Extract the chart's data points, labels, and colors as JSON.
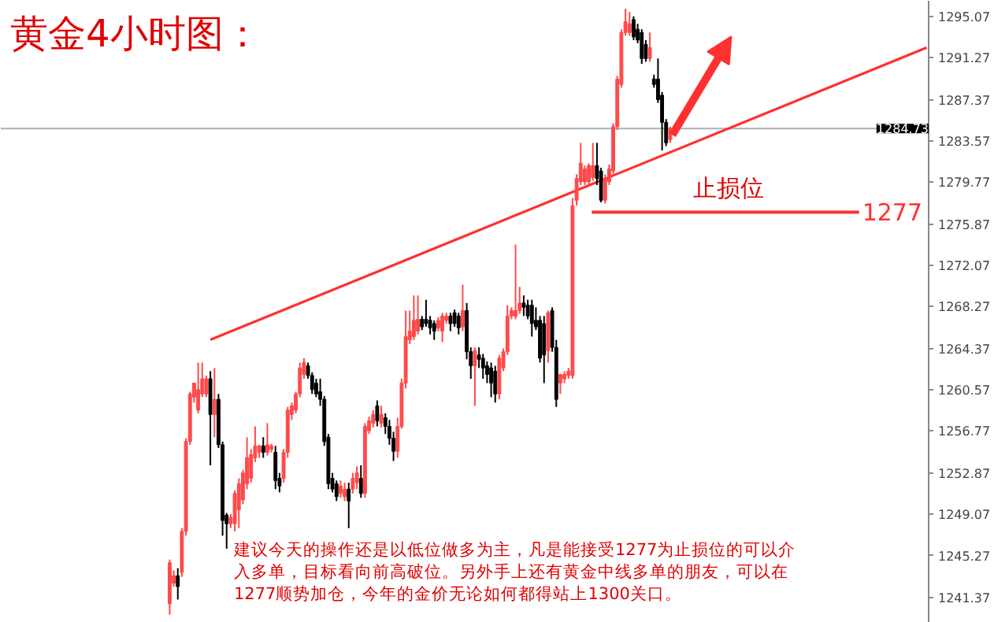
{
  "chart_data": {
    "type": "candlestick",
    "title": "黄金4小时图：",
    "categories": [
      null,
      null,
      null,
      null,
      null,
      null,
      null,
      null,
      null,
      null,
      null,
      null,
      null,
      null,
      null,
      null,
      null,
      null,
      null,
      null,
      null,
      null,
      null,
      null,
      null,
      null,
      null,
      null,
      null,
      null,
      null,
      null,
      null,
      null,
      null,
      null,
      null,
      null,
      null,
      null,
      null,
      null,
      null,
      null,
      null,
      null,
      null,
      null,
      null,
      null,
      null,
      null,
      null,
      null,
      null,
      null,
      null,
      null,
      null,
      null,
      null,
      null,
      null,
      null,
      null,
      null,
      null,
      null,
      null,
      null,
      null,
      null,
      null,
      null,
      null,
      null,
      null,
      null,
      null,
      null,
      null,
      null,
      null,
      null,
      null,
      null,
      null,
      null,
      null,
      null,
      null,
      null,
      null,
      null,
      null,
      null,
      null,
      null,
      null,
      null,
      null,
      null,
      null,
      null,
      null,
      null,
      null,
      null,
      null,
      null,
      null,
      null,
      null,
      null,
      null,
      null,
      null,
      null,
      null,
      null,
      null,
      null,
      null,
      null,
      null,
      null,
      null,
      null,
      null,
      null,
      null,
      null,
      null,
      null,
      null,
      null,
      null,
      null,
      null,
      null,
      null,
      null,
      null,
      null,
      null,
      null,
      null,
      null,
      null,
      null,
      null,
      null,
      null,
      null,
      null,
      null,
      null,
      null,
      null,
      null,
      null,
      null,
      null,
      null,
      null,
      null,
      null,
      null,
      null,
      null,
      null,
      null,
      null,
      null,
      null,
      null,
      null,
      null,
      null,
      null,
      null,
      null,
      null,
      null,
      null,
      null,
      null,
      null,
      null,
      null,
      null,
      null,
      null,
      null,
      null,
      null,
      null,
      null,
      null,
      null,
      null,
      null,
      null,
      null,
      null,
      null,
      null,
      null,
      null,
      null,
      null,
      null,
      null,
      null,
      null,
      null,
      null,
      null,
      null,
      null,
      null,
      null,
      null,
      null,
      null,
      null,
      null,
      null
    ],
    "ohlc": [
      null,
      null,
      null,
      null,
      null,
      null,
      null,
      null,
      null,
      null,
      null,
      null,
      null,
      null,
      null,
      null,
      null,
      null,
      null,
      null,
      null,
      null,
      null,
      null,
      null,
      null,
      null,
      null,
      null,
      null,
      null,
      null,
      null,
      null,
      null,
      null,
      null,
      null,
      null,
      null,
      null,
      [
        1240.8,
        1244.9,
        1239.8,
        1244.6
      ],
      [
        1242.7,
        1243.9,
        1242.4,
        1243.4
      ],
      [
        1243.4,
        1244.1,
        1241.2,
        1242.4
      ],
      [
        1243.7,
        1247.8,
        1243.3,
        1247.5
      ],
      [
        1247.5,
        1256.1,
        1247.1,
        1255.8
      ],
      [
        1255.8,
        1260.4,
        1255.5,
        1260.2
      ],
      [
        1259.9,
        1261.2,
        1259.4,
        1261.2
      ],
      [
        1258.7,
        1263.1,
        1258.4,
        1260.6
      ],
      [
        1260.2,
        1263.1,
        1259.9,
        1261.6
      ],
      [
        1260.2,
        1261.9,
        1259.9,
        1261.6
      ],
      [
        1261.6,
        1262.3,
        1253.6,
        1258.3
      ],
      [
        1258.3,
        1262.6,
        1256.2,
        1259.7
      ],
      [
        1259.7,
        1260.2,
        1255.2,
        1255.5
      ],
      [
        1255.5,
        1255.8,
        1247.1,
        1248.5
      ],
      [
        1249.0,
        1249.2,
        1245.9,
        1248.2
      ],
      [
        1248.2,
        1249.1,
        1247.8,
        1248.8
      ],
      [
        1248.2,
        1251.3,
        1247.5,
        1251.0
      ],
      [
        1249.5,
        1252.4,
        1247.8,
        1251.9
      ],
      [
        1250.4,
        1253.2,
        1250.0,
        1252.9
      ],
      [
        1251.9,
        1256.2,
        1251.4,
        1254.3
      ],
      [
        1252.4,
        1255.1,
        1252.0,
        1254.6
      ],
      [
        1254.3,
        1257.2,
        1253.9,
        1255.4
      ],
      [
        1254.8,
        1255.5,
        1254.3,
        1255.4
      ],
      [
        1255.4,
        1256.2,
        1254.3,
        1254.8
      ],
      [
        1254.8,
        1257.5,
        1254.5,
        1255.5
      ],
      [
        1255.1,
        1255.6,
        1254.8,
        1255.4
      ],
      [
        1254.8,
        1255.4,
        1251.4,
        1252.2
      ],
      [
        1252.4,
        1252.9,
        1251.1,
        1251.7
      ],
      [
        1252.4,
        1255.1,
        1252.0,
        1254.8
      ],
      [
        1254.8,
        1259.0,
        1254.3,
        1258.7
      ],
      [
        1258.3,
        1259.4,
        1257.8,
        1259.1
      ],
      [
        1258.7,
        1260.4,
        1258.4,
        1260.2
      ],
      [
        1260.2,
        1263.1,
        1259.9,
        1262.6
      ],
      [
        1262.0,
        1263.5,
        1261.6,
        1263.1
      ],
      [
        1262.8,
        1263.1,
        1261.6,
        1261.9
      ],
      [
        1261.9,
        1262.2,
        1260.2,
        1260.6
      ],
      [
        1261.2,
        1261.6,
        1259.9,
        1260.2
      ],
      [
        1260.4,
        1261.6,
        1259.1,
        1259.7
      ],
      [
        1259.7,
        1260.0,
        1255.4,
        1255.8
      ],
      [
        1256.2,
        1256.5,
        1251.4,
        1251.9
      ],
      [
        1252.4,
        1252.9,
        1251.1,
        1251.4
      ],
      [
        1251.9,
        1252.2,
        1250.3,
        1250.7
      ],
      [
        1251.0,
        1252.2,
        1250.6,
        1251.7
      ],
      [
        1250.7,
        1252.0,
        1250.3,
        1251.4
      ],
      [
        1251.4,
        1252.0,
        1247.8,
        1250.3
      ],
      [
        1251.4,
        1252.9,
        1251.0,
        1252.4
      ],
      [
        1252.0,
        1253.5,
        1251.4,
        1252.9
      ],
      [
        1252.4,
        1253.6,
        1250.6,
        1251.0
      ],
      [
        1251.0,
        1257.5,
        1250.6,
        1257.2
      ],
      [
        1256.8,
        1258.1,
        1256.5,
        1257.7
      ],
      [
        1257.5,
        1258.7,
        1257.1,
        1258.3
      ],
      [
        1259.1,
        1259.6,
        1257.2,
        1257.7
      ],
      [
        1257.5,
        1259.1,
        1257.1,
        1258.3
      ],
      [
        1258.0,
        1258.4,
        1256.5,
        1257.2
      ],
      [
        1257.2,
        1257.8,
        1255.5,
        1256.1
      ],
      [
        1256.1,
        1256.7,
        1254.0,
        1254.9
      ],
      [
        1254.9,
        1258.0,
        1254.3,
        1257.2
      ],
      [
        1257.2,
        1261.6,
        1257.0,
        1261.2
      ],
      [
        1261.2,
        1267.9,
        1260.7,
        1265.5
      ],
      [
        1265.2,
        1267.9,
        1264.8,
        1266.0
      ],
      [
        1265.5,
        1269.3,
        1265.2,
        1267.0
      ],
      [
        1266.0,
        1269.3,
        1265.7,
        1267.1
      ],
      [
        1267.1,
        1267.4,
        1266.1,
        1266.4
      ],
      [
        1267.1,
        1268.9,
        1266.4,
        1266.7
      ],
      [
        1267.0,
        1267.4,
        1265.7,
        1266.3
      ],
      [
        1266.7,
        1267.0,
        1265.2,
        1266.0
      ],
      [
        1266.3,
        1267.3,
        1266.0,
        1267.0
      ],
      [
        1266.0,
        1267.7,
        1265.0,
        1267.4
      ],
      [
        1267.0,
        1267.7,
        1266.7,
        1267.4
      ],
      [
        1267.4,
        1267.7,
        1266.0,
        1266.7
      ],
      [
        1267.7,
        1268.0,
        1266.4,
        1266.7
      ],
      [
        1267.4,
        1267.7,
        1265.7,
        1266.3
      ],
      [
        1266.4,
        1270.3,
        1266.0,
        1267.9
      ],
      [
        1267.9,
        1268.6,
        1263.4,
        1264.1
      ],
      [
        1264.1,
        1264.5,
        1261.6,
        1262.8
      ],
      [
        1262.8,
        1264.5,
        1259.1,
        1264.2
      ],
      [
        1263.8,
        1264.5,
        1262.6,
        1263.4
      ],
      [
        1263.5,
        1263.9,
        1261.6,
        1262.6
      ],
      [
        1262.8,
        1263.2,
        1261.2,
        1262.0
      ],
      [
        1262.6,
        1263.1,
        1259.9,
        1261.2
      ],
      [
        1262.3,
        1262.8,
        1259.4,
        1260.2
      ],
      [
        1260.2,
        1263.8,
        1259.7,
        1263.5
      ],
      [
        1262.6,
        1264.4,
        1262.3,
        1264.1
      ],
      [
        1264.1,
        1268.4,
        1263.8,
        1267.4
      ],
      [
        1267.4,
        1268.2,
        1267.1,
        1267.9
      ],
      [
        1267.4,
        1274.0,
        1267.1,
        1267.9
      ],
      [
        1267.9,
        1270.1,
        1267.6,
        1268.6
      ],
      [
        1268.6,
        1269.3,
        1267.4,
        1268.2
      ],
      [
        1268.4,
        1268.9,
        1267.1,
        1267.4
      ],
      [
        1268.4,
        1268.9,
        1265.5,
        1266.7
      ],
      [
        1267.0,
        1268.2,
        1266.1,
        1266.4
      ],
      [
        1267.0,
        1267.4,
        1263.1,
        1263.5
      ],
      [
        1266.7,
        1267.4,
        1261.2,
        1263.8
      ],
      [
        1264.2,
        1267.9,
        1263.1,
        1267.7
      ],
      [
        1267.9,
        1268.2,
        1264.1,
        1264.5
      ],
      [
        1264.5,
        1265.2,
        1259.0,
        1259.7
      ],
      [
        1261.2,
        1262.0,
        1260.2,
        1262.0
      ],
      [
        1261.6,
        1262.3,
        1261.2,
        1262.0
      ],
      [
        1261.9,
        1262.6,
        1261.6,
        1262.3
      ],
      [
        1261.9,
        1278.3,
        1261.6,
        1277.6
      ],
      [
        1278.1,
        1280.5,
        1277.6,
        1280.1
      ],
      [
        1279.8,
        1283.4,
        1279.5,
        1281.5
      ],
      [
        1279.8,
        1281.3,
        1279.5,
        1281.0
      ],
      [
        1279.8,
        1281.5,
        1279.5,
        1281.3
      ],
      [
        1280.2,
        1283.4,
        1279.9,
        1281.3
      ],
      [
        1281.3,
        1283.4,
        1279.5,
        1280.1
      ],
      [
        1280.8,
        1281.1,
        1277.9,
        1278.1
      ],
      [
        1278.1,
        1280.5,
        1277.8,
        1280.1
      ],
      [
        1279.8,
        1281.4,
        1279.5,
        1281.0
      ],
      [
        1280.8,
        1285.2,
        1280.5,
        1284.9
      ],
      [
        1284.9,
        1289.6,
        1284.6,
        1289.3
      ],
      [
        1288.8,
        1293.9,
        1288.5,
        1293.6
      ],
      [
        1293.6,
        1295.8,
        1293.3,
        1294.6
      ],
      [
        1293.6,
        1295.5,
        1293.3,
        1294.4
      ],
      [
        1294.8,
        1295.1,
        1292.9,
        1293.2
      ],
      [
        1293.9,
        1294.4,
        1292.6,
        1292.9
      ],
      [
        1293.6,
        1293.9,
        1290.7,
        1291.2
      ],
      [
        1292.5,
        1292.9,
        1290.9,
        1291.2
      ],
      [
        1291.2,
        1293.6,
        1290.9,
        1292.2
      ],
      [
        1289.3,
        1289.7,
        1288.5,
        1288.8
      ],
      [
        1289.3,
        1291.2,
        1287.1,
        1287.4
      ],
      [
        1287.8,
        1288.1,
        1282.7,
        1285.3
      ],
      [
        1285.3,
        1285.6,
        1283.1,
        1283.4
      ],
      [
        1283.7,
        1284.9,
        1283.4,
        1284.73
      ],
      null,
      null,
      null,
      null,
      null,
      null,
      null,
      null,
      null,
      null,
      null,
      null,
      null,
      null,
      null,
      null,
      null,
      null,
      null,
      null,
      null,
      null,
      null,
      null,
      null,
      null,
      null,
      null,
      null,
      null,
      null,
      null,
      null,
      null,
      null,
      null,
      null,
      null,
      null,
      null,
      null,
      null,
      null,
      null,
      null,
      null,
      null,
      null,
      null,
      null,
      null,
      null,
      null,
      null,
      null,
      null,
      null,
      null,
      null,
      null,
      null,
      null,
      null
    ],
    "series": [
      {
        "type": "line",
        "color": "#ff3030",
        "values": [
          null,
          null,
          null,
          null,
          null,
          null,
          null,
          null,
          null,
          null,
          null,
          null,
          null,
          null,
          null,
          null,
          null,
          null,
          null,
          null,
          null,
          null,
          null,
          null,
          null,
          null,
          null,
          null,
          null,
          null,
          null,
          null,
          null,
          null,
          null,
          null,
          null,
          null,
          null,
          null,
          null,
          null,
          null,
          null,
          null,
          null,
          null,
          null,
          null,
          null,
          null,
          1265.2,
          null,
          null,
          null,
          null,
          null,
          null,
          null,
          null,
          null,
          null,
          null,
          null,
          null,
          null,
          null,
          null,
          null,
          null,
          null,
          null,
          null,
          null,
          null,
          null,
          null,
          null,
          null,
          null,
          null,
          null,
          null,
          null,
          null,
          null,
          null,
          null,
          null,
          null,
          null,
          null,
          null,
          null,
          null,
          null,
          null,
          null,
          null,
          null,
          null,
          null,
          null,
          null,
          null,
          null,
          null,
          null,
          null,
          null,
          null,
          null,
          null,
          null,
          null,
          null,
          null,
          null,
          null,
          null,
          null,
          null,
          null,
          null,
          null,
          null,
          null,
          null,
          null,
          null,
          null,
          null,
          null,
          null,
          null,
          null,
          null,
          null,
          null,
          null,
          null,
          null,
          null,
          null,
          null,
          null,
          null,
          null,
          null,
          null,
          null,
          null,
          null,
          null,
          null,
          null,
          null,
          null,
          null,
          null,
          null,
          null,
          null,
          null,
          null,
          null,
          null,
          null,
          null,
          null,
          null,
          null,
          null,
          null,
          null,
          null,
          null,
          null,
          null,
          null,
          null,
          null,
          null,
          null,
          null,
          null,
          null,
          null,
          null,
          null,
          null,
          null,
          null,
          null,
          null,
          null,
          null,
          null,
          null,
          null,
          null,
          null,
          null,
          null,
          null,
          null,
          null,
          null,
          null,
          null,
          null,
          null,
          null,
          null,
          null,
          null,
          null,
          null,
          null,
          null,
          null,
          null,
          null,
          null,
          null,
          null,
          null,
          1292.2
        ]
      }
    ],
    "ylim": [
      1239.05,
      1296.53
    ],
    "yticks": [
      1295.07,
      1291.27,
      1287.37,
      1283.57,
      1279.77,
      1275.87,
      1272.07,
      1268.27,
      1264.37,
      1260.57,
      1256.77,
      1252.87,
      1249.07,
      1245.27,
      1241.37
    ],
    "ref_lines": [
      {
        "axis": "y",
        "value": 1284.73,
        "label": "1284.73",
        "color": "#a8b0bc"
      },
      {
        "axis": "y",
        "value": 1277,
        "label": "1277",
        "color": "#ff3030"
      }
    ],
    "annotations": [
      "止损位",
      "建议今天的操作还是以低位做多为主，凡是能接受1277为止损位的可以介",
      "入多单，目标看向前高破位。另外手上还有黄金中线多单的朋友，可以在",
      "1277顺势加仓，今年的金价无论如何都得站上1300关口。"
    ],
    "tick_labels": "y",
    "grid": false
  }
}
